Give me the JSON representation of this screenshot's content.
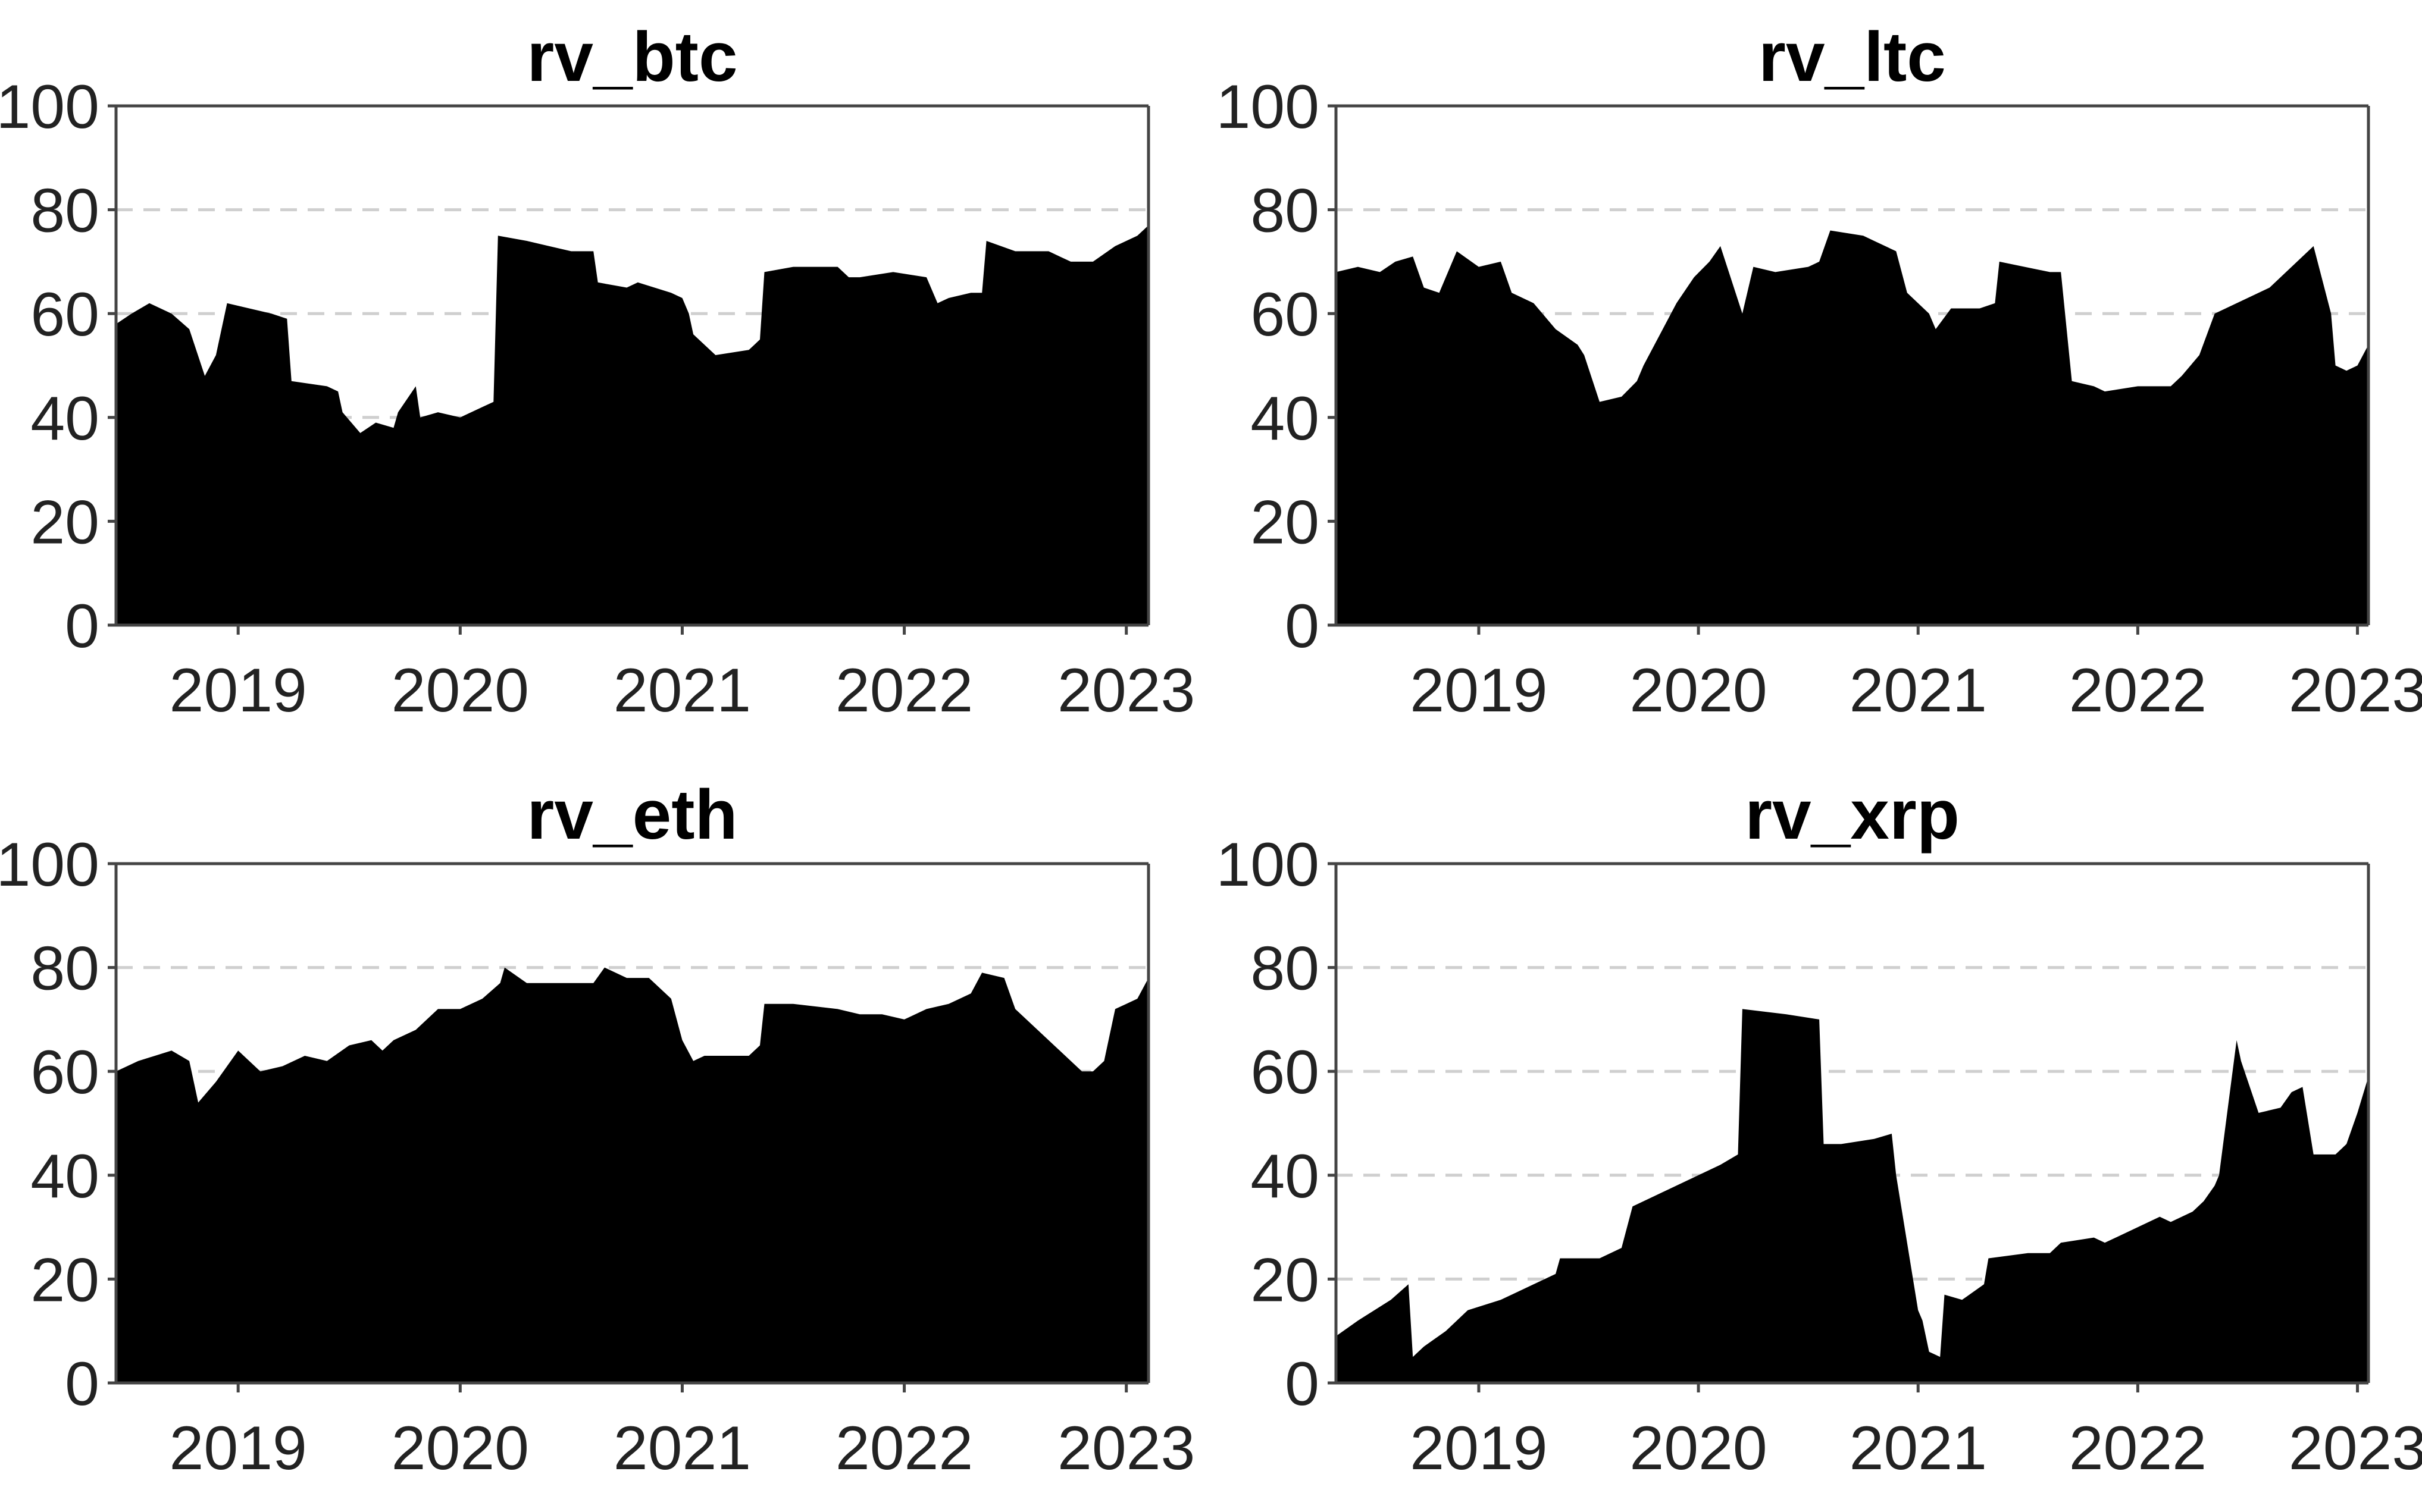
{
  "chart_data": [
    {
      "type": "area",
      "title": "rv_btc",
      "xlabel": "",
      "ylabel": "",
      "ylim": [
        0,
        100
      ],
      "yticks": [
        0,
        20,
        40,
        60,
        80,
        100
      ],
      "xlim": [
        2018.45,
        2023.1
      ],
      "xticks": [
        2019,
        2020,
        2021,
        2022,
        2023
      ],
      "xtick_labels": [
        "2019",
        "2020",
        "2021",
        "2022",
        "2023"
      ],
      "gridlines_y": [
        20,
        40,
        60,
        80
      ],
      "x": [
        2018.45,
        2018.52,
        2018.6,
        2018.7,
        2018.78,
        2018.85,
        2018.9,
        2018.95,
        2019.05,
        2019.15,
        2019.22,
        2019.24,
        2019.4,
        2019.45,
        2019.47,
        2019.55,
        2019.62,
        2019.7,
        2019.72,
        2019.8,
        2019.82,
        2019.9,
        2020.0,
        2020.1,
        2020.15,
        2020.17,
        2020.3,
        2020.4,
        2020.5,
        2020.6,
        2020.62,
        2020.75,
        2020.8,
        2020.95,
        2021.0,
        2021.03,
        2021.05,
        2021.15,
        2021.3,
        2021.35,
        2021.37,
        2021.5,
        2021.7,
        2021.75,
        2021.8,
        2021.95,
        2022.1,
        2022.15,
        2022.2,
        2022.3,
        2022.35,
        2022.37,
        2022.5,
        2022.65,
        2022.7,
        2022.75,
        2022.85,
        2022.95,
        2023.05,
        2023.1
      ],
      "values": [
        58,
        60,
        62,
        60,
        57,
        48,
        52,
        62,
        61,
        60,
        59,
        47,
        46,
        45,
        41,
        37,
        39,
        38,
        41,
        46,
        40,
        41,
        40,
        42,
        43,
        75,
        74,
        73,
        72,
        72,
        66,
        65,
        66,
        64,
        63,
        60,
        56,
        52,
        53,
        55,
        68,
        69,
        69,
        67,
        67,
        68,
        67,
        62,
        63,
        64,
        64,
        74,
        72,
        72,
        71,
        70,
        70,
        73,
        75,
        77
      ]
    },
    {
      "type": "area",
      "title": "rv_ltc",
      "xlabel": "",
      "ylabel": "",
      "ylim": [
        0,
        100
      ],
      "yticks": [
        0,
        20,
        40,
        60,
        80,
        100
      ],
      "xlim": [
        2018.35,
        2023.05
      ],
      "xticks": [
        2019,
        2020,
        2021,
        2022,
        2023
      ],
      "xtick_labels": [
        "2019",
        "2020",
        "2021",
        "2022",
        "2023"
      ],
      "gridlines_y": [
        20,
        40,
        60,
        80
      ],
      "x": [
        2018.35,
        2018.45,
        2018.55,
        2018.62,
        2018.7,
        2018.75,
        2018.82,
        2018.9,
        2019.0,
        2019.1,
        2019.15,
        2019.25,
        2019.35,
        2019.45,
        2019.48,
        2019.55,
        2019.65,
        2019.72,
        2019.75,
        2019.9,
        2019.98,
        2020.05,
        2020.1,
        2020.2,
        2020.25,
        2020.35,
        2020.5,
        2020.55,
        2020.6,
        2020.75,
        2020.8,
        2020.9,
        2020.95,
        2021.05,
        2021.08,
        2021.15,
        2021.28,
        2021.35,
        2021.37,
        2021.6,
        2021.65,
        2021.7,
        2021.8,
        2021.85,
        2022.0,
        2022.15,
        2022.2,
        2022.28,
        2022.35,
        2022.5,
        2022.6,
        2022.8,
        2022.88,
        2022.9,
        2022.95,
        2023.0,
        2023.05
      ],
      "values": [
        68,
        69,
        68,
        70,
        71,
        65,
        64,
        72,
        69,
        70,
        64,
        62,
        57,
        54,
        52,
        43,
        44,
        47,
        50,
        62,
        67,
        70,
        73,
        60,
        69,
        68,
        69,
        70,
        76,
        75,
        74,
        72,
        64,
        60,
        57,
        61,
        61,
        62,
        70,
        68,
        68,
        47,
        46,
        45,
        46,
        46,
        48,
        52,
        60,
        63,
        65,
        73,
        60,
        50,
        49,
        50,
        54
      ]
    },
    {
      "type": "area",
      "title": "rv_eth",
      "xlabel": "",
      "ylabel": "",
      "ylim": [
        0,
        100
      ],
      "yticks": [
        0,
        20,
        40,
        60,
        80,
        100
      ],
      "xlim": [
        2018.45,
        2023.1
      ],
      "xticks": [
        2019,
        2020,
        2021,
        2022,
        2023
      ],
      "xtick_labels": [
        "2019",
        "2020",
        "2021",
        "2022",
        "2023"
      ],
      "gridlines_y": [
        20,
        40,
        60,
        80
      ],
      "x": [
        2018.45,
        2018.55,
        2018.7,
        2018.78,
        2018.82,
        2018.9,
        2019.0,
        2019.1,
        2019.2,
        2019.3,
        2019.4,
        2019.5,
        2019.6,
        2019.65,
        2019.7,
        2019.8,
        2019.9,
        2020.0,
        2020.1,
        2020.18,
        2020.2,
        2020.3,
        2020.45,
        2020.6,
        2020.65,
        2020.75,
        2020.85,
        2020.95,
        2021.0,
        2021.05,
        2021.1,
        2021.3,
        2021.35,
        2021.37,
        2021.5,
        2021.7,
        2021.8,
        2021.9,
        2022.0,
        2022.1,
        2022.2,
        2022.3,
        2022.35,
        2022.45,
        2022.5,
        2022.7,
        2022.8,
        2022.85,
        2022.9,
        2022.95,
        2023.0,
        2023.05,
        2023.1
      ],
      "values": [
        60,
        62,
        64,
        62,
        54,
        58,
        64,
        60,
        61,
        63,
        62,
        65,
        66,
        64,
        66,
        68,
        72,
        72,
        74,
        77,
        80,
        77,
        77,
        77,
        80,
        78,
        78,
        74,
        66,
        62,
        63,
        63,
        65,
        73,
        73,
        72,
        71,
        71,
        70,
        72,
        73,
        75,
        79,
        78,
        72,
        64,
        60,
        60,
        62,
        72,
        73,
        74,
        78
      ]
    },
    {
      "type": "area",
      "title": "rv_xrp",
      "xlabel": "",
      "ylabel": "",
      "ylim": [
        0,
        100
      ],
      "yticks": [
        0,
        20,
        40,
        60,
        80,
        100
      ],
      "xlim": [
        2018.35,
        2023.05
      ],
      "xticks": [
        2019,
        2020,
        2021,
        2022,
        2023
      ],
      "xtick_labels": [
        "2019",
        "2020",
        "2021",
        "2022",
        "2023"
      ],
      "gridlines_y": [
        20,
        40,
        60,
        80
      ],
      "x": [
        2018.35,
        2018.45,
        2018.6,
        2018.68,
        2018.7,
        2018.75,
        2018.85,
        2018.95,
        2019.1,
        2019.25,
        2019.35,
        2019.37,
        2019.55,
        2019.65,
        2019.7,
        2019.8,
        2019.9,
        2020.0,
        2020.1,
        2020.18,
        2020.2,
        2020.4,
        2020.55,
        2020.57,
        2020.65,
        2020.8,
        2020.88,
        2020.9,
        2021.0,
        2021.02,
        2021.05,
        2021.1,
        2021.12,
        2021.2,
        2021.3,
        2021.32,
        2021.5,
        2021.6,
        2021.65,
        2021.8,
        2021.85,
        2022.0,
        2022.1,
        2022.15,
        2022.25,
        2022.3,
        2022.35,
        2022.37,
        2022.45,
        2022.47,
        2022.55,
        2022.65,
        2022.7,
        2022.75,
        2022.8,
        2022.9,
        2022.95,
        2023.0,
        2023.05
      ],
      "values": [
        9,
        12,
        16,
        19,
        5,
        7,
        10,
        14,
        16,
        19,
        21,
        24,
        24,
        26,
        34,
        36,
        38,
        40,
        42,
        44,
        72,
        71,
        70,
        46,
        46,
        47,
        48,
        40,
        14,
        12,
        6,
        5,
        17,
        16,
        19,
        24,
        25,
        25,
        27,
        28,
        27,
        30,
        32,
        31,
        33,
        35,
        38,
        40,
        66,
        62,
        52,
        53,
        56,
        57,
        44,
        44,
        46,
        52,
        59
      ]
    }
  ]
}
